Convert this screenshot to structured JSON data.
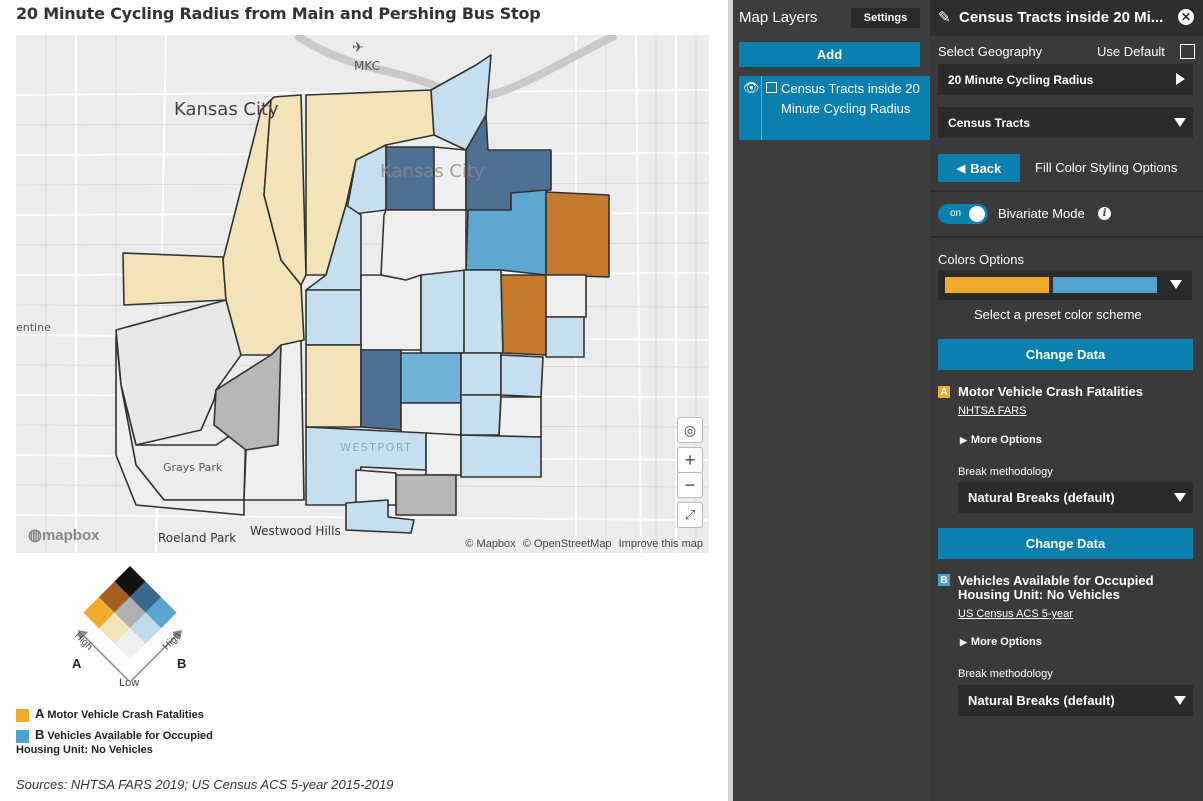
{
  "map": {
    "title": "20 Minute Cycling Radius from Main and Pershing Bus Stop",
    "labels": {
      "airport": "MKC",
      "city_big": "Kansas City",
      "city_overlay": "Kansas City",
      "left_edge": "entine",
      "grays_park": "Grays Park",
      "westport": "WESTPORT",
      "roeland_park": "Roeland Park",
      "westwood_hills": "Westwood Hills"
    },
    "logo": "mapbox",
    "attribution": [
      "© Mapbox",
      "© OpenStreetMap",
      "Improve this map"
    ]
  },
  "legend": {
    "axis_a": "A",
    "axis_b": "B",
    "high_a": "High",
    "high_b": "High",
    "low": "Low",
    "item_a_letter": "A",
    "item_a_text": "Motor Vehicle Crash Fatalities",
    "item_b_letter": "B",
    "item_b_text_line1": "Vehicles Available for Occupied",
    "item_b_text_line2": "Housing Unit: No Vehicles",
    "colors": {
      "a_swatch": "#f0ab2a",
      "b_swatch": "#4fa3cc"
    }
  },
  "sources": "Sources: NHTSA FARS 2019; US Census ACS 5-year 2015-2019",
  "layers": {
    "title": "Map Layers",
    "settings_label": "Settings",
    "add_label": "Add",
    "item_label": "Census Tracts inside 20 Minute Cycling Radius"
  },
  "panel": {
    "title": "Census Tracts inside 20 Mi...",
    "select_geography": "Select Geography",
    "use_default": "Use Default",
    "geography_value": "20 Minute Cycling Radius",
    "tracts_value": "Census Tracts",
    "back_label": "Back",
    "fill_options": "Fill Color Styling Options",
    "toggle_text": "on",
    "bivariate_label": "Bivariate Mode",
    "colors_options": "Colors Options",
    "color_a": "#f0ab2a",
    "color_b": "#4fa3cc",
    "preset_hint": "Select a preset color scheme",
    "change_data_label": "Change Data",
    "var_a": {
      "badge": "A",
      "title": "Motor Vehicle Crash Fatalities",
      "source": "NHTSA FARS",
      "more": "More Options",
      "break_label": "Break methodology",
      "break_value": "Natural Breaks (default)"
    },
    "var_b": {
      "badge": "B",
      "title": "Vehicles Available for Occupied Housing Unit: No Vehicles",
      "source": "US Census ACS 5-year",
      "more": "More Options",
      "break_label": "Break methodology",
      "break_value": "Natural Breaks (default)"
    }
  }
}
